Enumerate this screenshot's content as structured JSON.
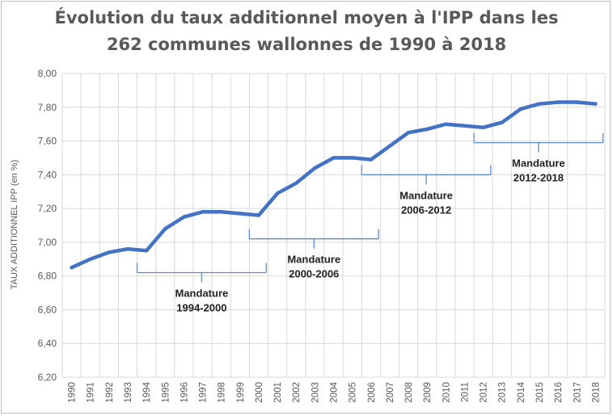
{
  "chart_data": {
    "type": "line",
    "title_lines": [
      "Évolution du taux additionnel moyen à l'IPP dans les",
      "262 communes wallonnes de 1990 à 2018"
    ],
    "xlabel": "",
    "ylabel": "TAUX ADDITIONNEL IPP (en %)",
    "ylim": [
      6.2,
      8.0
    ],
    "yticks": [
      "6,20",
      "6,40",
      "6,60",
      "6,80",
      "7,00",
      "7,20",
      "7,40",
      "7,60",
      "7,80",
      "8,00"
    ],
    "ytick_values": [
      6.2,
      6.4,
      6.6,
      6.8,
      7.0,
      7.2,
      7.4,
      7.6,
      7.8,
      8.0
    ],
    "grid": true,
    "categories": [
      "1990",
      "1991",
      "1992",
      "1993",
      "1994",
      "1995",
      "1996",
      "1997",
      "1998",
      "1999",
      "2000",
      "2001",
      "2002",
      "2003",
      "2004",
      "2005",
      "2006",
      "2007",
      "2008",
      "2009",
      "2010",
      "2011",
      "2012",
      "2013",
      "2014",
      "2015",
      "2016",
      "2017",
      "2018"
    ],
    "values": [
      6.85,
      6.9,
      6.94,
      6.96,
      6.95,
      7.08,
      7.15,
      7.18,
      7.18,
      7.17,
      7.16,
      7.29,
      7.35,
      7.44,
      7.5,
      7.5,
      7.49,
      7.57,
      7.65,
      7.67,
      7.7,
      7.69,
      7.68,
      7.71,
      7.79,
      7.82,
      7.83,
      7.83,
      7.82
    ],
    "line_color": "#4472c4",
    "bracket_color": "#5b8bd0",
    "annotations": [
      {
        "label_line1": "Mandature",
        "label_line2": "1994-2000",
        "start_year": "1994",
        "end_year": "2000",
        "level": 6.82,
        "text_position": "below"
      },
      {
        "label_line1": "Mandature",
        "label_line2": "2000-2006",
        "start_year": "2000",
        "end_year": "2006",
        "level": 7.02,
        "text_position": "below"
      },
      {
        "label_line1": "Mandature",
        "label_line2": "2006-2012",
        "start_year": "2006",
        "end_year": "2012",
        "level": 7.4,
        "text_position": "below"
      },
      {
        "label_line1": "Mandature",
        "label_line2": "2012-2018",
        "start_year": "2012",
        "end_year": "2018",
        "level": 7.59,
        "text_position": "below"
      }
    ]
  }
}
